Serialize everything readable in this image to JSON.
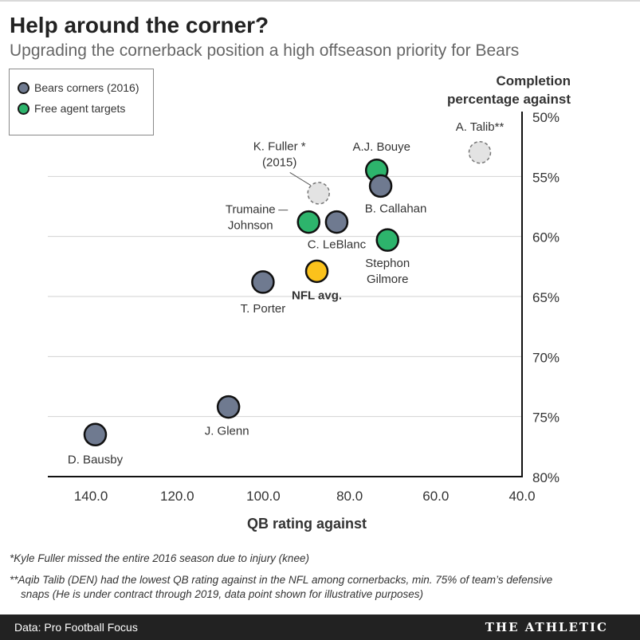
{
  "header": {
    "title": "Help around the corner?",
    "subtitle": "Upgrading the cornerback position a high offseason priority for Bears"
  },
  "legend": {
    "items": [
      {
        "label": "Bears corners (2016)",
        "color": "#6f7a90"
      },
      {
        "label": "Free agent targets",
        "color": "#2db46c"
      }
    ]
  },
  "axis": {
    "ylabel_line1": "Completion",
    "ylabel_line2": "percentage against",
    "xlabel": "QB rating against"
  },
  "chart_data": {
    "type": "scatter",
    "xlabel": "QB rating against",
    "ylabel": "Completion percentage against",
    "xlim": [
      150,
      40
    ],
    "ylim": [
      50,
      80
    ],
    "x_ticks": [
      140,
      120,
      100,
      80,
      60,
      40
    ],
    "x_tick_labels": [
      "140.0",
      "120.0",
      "100.0",
      "80.0",
      "60.0",
      "40.0"
    ],
    "y_ticks": [
      50,
      55,
      60,
      65,
      70,
      75,
      80
    ],
    "y_tick_labels": [
      "50%",
      "55%",
      "60%",
      "65%",
      "70%",
      "75%",
      "80%"
    ],
    "points": [
      {
        "label": "A. Talib**",
        "x": 49.8,
        "y": 53.0,
        "group": "reference"
      },
      {
        "label": "K. Fuller * (2015)",
        "x": 87.2,
        "y": 56.4,
        "group": "reference"
      },
      {
        "label": "A.J. Bouye",
        "x": 73.7,
        "y": 54.5,
        "group": "free_agent"
      },
      {
        "label": "B. Callahan",
        "x": 72.8,
        "y": 55.8,
        "group": "bears"
      },
      {
        "label": "Trumaine Johnson",
        "x": 89.5,
        "y": 58.8,
        "group": "free_agent"
      },
      {
        "label": "C. LeBlanc",
        "x": 83.0,
        "y": 58.8,
        "group": "bears"
      },
      {
        "label": "Stephon Gilmore",
        "x": 71.2,
        "y": 60.3,
        "group": "free_agent"
      },
      {
        "label": "NFL avg.",
        "x": 87.6,
        "y": 62.9,
        "group": "average"
      },
      {
        "label": "T. Porter",
        "x": 100.1,
        "y": 63.8,
        "group": "bears"
      },
      {
        "label": "J. Glenn",
        "x": 108.1,
        "y": 74.2,
        "group": "bears"
      },
      {
        "label": "D. Bausby",
        "x": 139.0,
        "y": 76.5,
        "group": "bears"
      }
    ],
    "colors": {
      "bears": "#6f7a90",
      "free_agent": "#2db46c",
      "average": "#fbc21b",
      "reference": "#e3e3e3"
    }
  },
  "footnotes": {
    "note1": "*Kyle Fuller missed the entire 2016 season due to injury (knee)",
    "note2_line1": "**Aqib Talib (DEN) had the lowest QB rating against in the NFL among cornerbacks, min. 75% of team’s defensive",
    "note2_line2": "snaps (He is under contract through 2019, data point shown for illustrative purposes)"
  },
  "footer": {
    "source": "Data: Pro Football Focus",
    "brand": "THE ATHLETIC"
  }
}
